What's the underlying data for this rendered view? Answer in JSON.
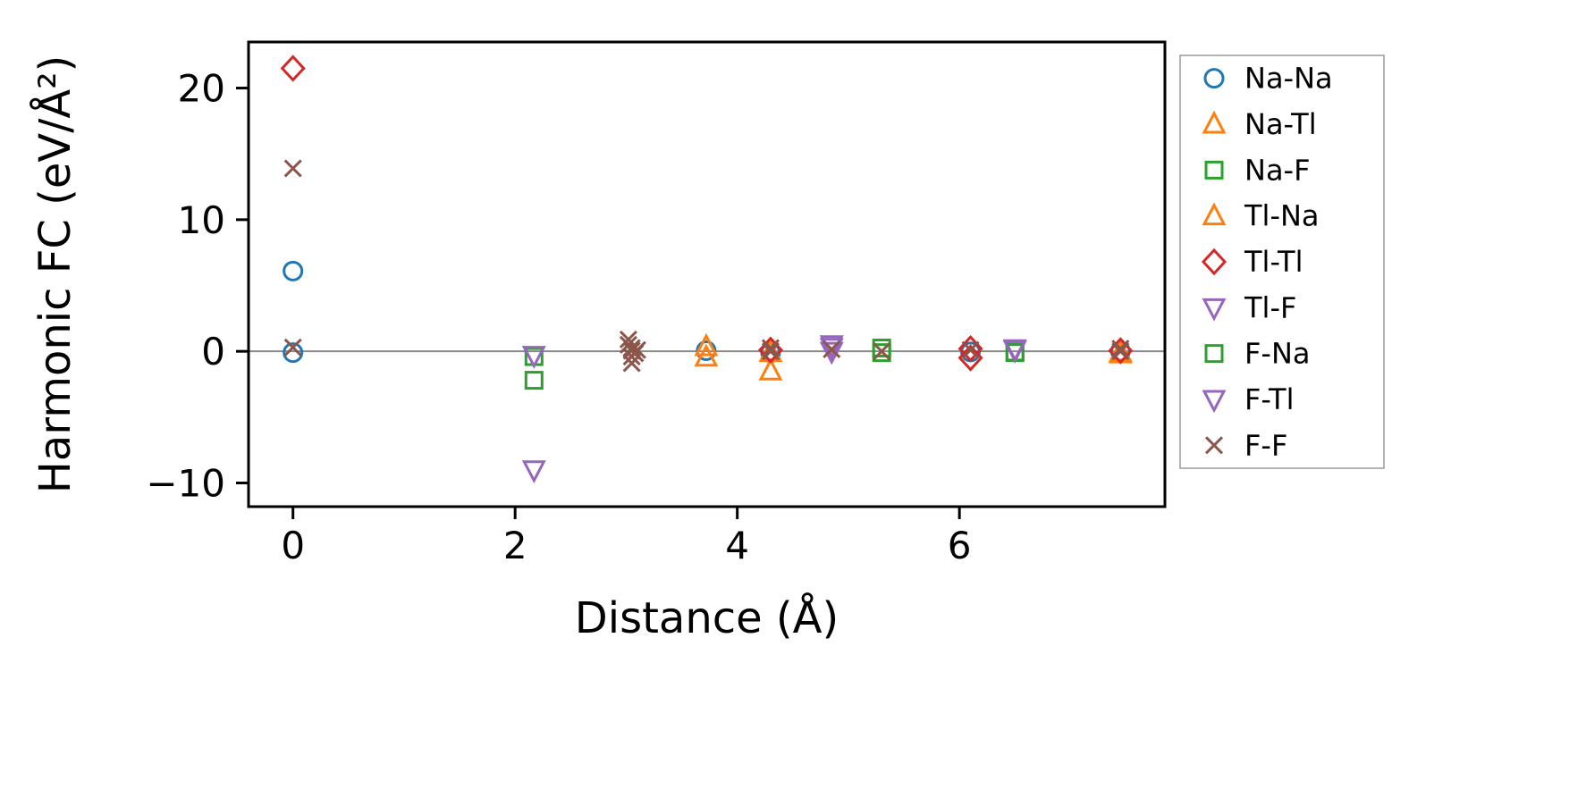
{
  "chart_data": {
    "type": "scatter",
    "title": "",
    "xlabel": "Distance (Å)",
    "ylabel": "Harmonic FC (eV/Å²)",
    "xlim": [
      -0.4,
      7.85
    ],
    "ylim": [
      -11.8,
      23.5
    ],
    "xticks": [
      0,
      2,
      4,
      6
    ],
    "yticks": [
      -10,
      0,
      10,
      20
    ],
    "grid": false,
    "legend_position": "outside-right",
    "zero_line": {
      "y": 0,
      "color": "#888888"
    },
    "series": [
      {
        "name": "Na-Na",
        "marker": "circle",
        "color": "#1f77b4",
        "points": [
          [
            0,
            6.1
          ],
          [
            0,
            -0.1
          ],
          [
            3.72,
            0.05
          ],
          [
            4.3,
            -0.1
          ],
          [
            6.1,
            -0.05
          ],
          [
            7.45,
            0.0
          ]
        ]
      },
      {
        "name": "Na-Tl",
        "marker": "triangle-up",
        "color": "#ff7f0e",
        "points": [
          [
            3.72,
            0.35
          ],
          [
            4.3,
            -1.5
          ],
          [
            7.45,
            -0.2
          ]
        ]
      },
      {
        "name": "Na-F",
        "marker": "square",
        "color": "#2ca02c",
        "points": [
          [
            2.17,
            -2.2
          ],
          [
            5.3,
            0.25
          ],
          [
            6.5,
            -0.1
          ]
        ]
      },
      {
        "name": "Tl-Na",
        "marker": "triangle-up",
        "color": "#ff7f0e",
        "points": [
          [
            3.72,
            -0.45
          ],
          [
            4.3,
            -0.1
          ],
          [
            7.45,
            -0.1
          ]
        ]
      },
      {
        "name": "Tl-Tl",
        "marker": "diamond",
        "color": "#d62728",
        "points": [
          [
            0,
            21.5
          ],
          [
            4.3,
            0.1
          ],
          [
            6.1,
            0.2
          ],
          [
            6.1,
            -0.5
          ],
          [
            7.45,
            0.05
          ]
        ]
      },
      {
        "name": "Tl-F",
        "marker": "triangle-down",
        "color": "#9467bd",
        "points": [
          [
            2.17,
            -9.0
          ],
          [
            4.85,
            0.5
          ],
          [
            6.5,
            0.2
          ]
        ]
      },
      {
        "name": "F-Na",
        "marker": "square",
        "color": "#2ca02c",
        "points": [
          [
            2.17,
            -0.4
          ],
          [
            5.3,
            -0.1
          ],
          [
            6.5,
            -0.05
          ]
        ]
      },
      {
        "name": "F-Tl",
        "marker": "triangle-down",
        "color": "#9467bd",
        "points": [
          [
            2.17,
            -0.3
          ],
          [
            4.85,
            0.3
          ],
          [
            4.85,
            0.0
          ],
          [
            6.5,
            0.1
          ]
        ]
      },
      {
        "name": "F-F",
        "marker": "x",
        "color": "#8c564b",
        "points": [
          [
            0,
            13.9
          ],
          [
            0,
            0.3
          ],
          [
            3.02,
            0.9
          ],
          [
            3.02,
            0.5
          ],
          [
            3.05,
            0.25
          ],
          [
            3.05,
            0.05
          ],
          [
            3.08,
            -0.15
          ],
          [
            3.05,
            -0.4
          ],
          [
            3.05,
            -0.9
          ],
          [
            3.1,
            0.1
          ],
          [
            4.3,
            0.25
          ],
          [
            4.3,
            0.0
          ],
          [
            4.85,
            0.15
          ],
          [
            5.3,
            0.0
          ],
          [
            6.1,
            0.1
          ],
          [
            7.45,
            0.2
          ],
          [
            7.45,
            0.0
          ]
        ]
      }
    ]
  }
}
